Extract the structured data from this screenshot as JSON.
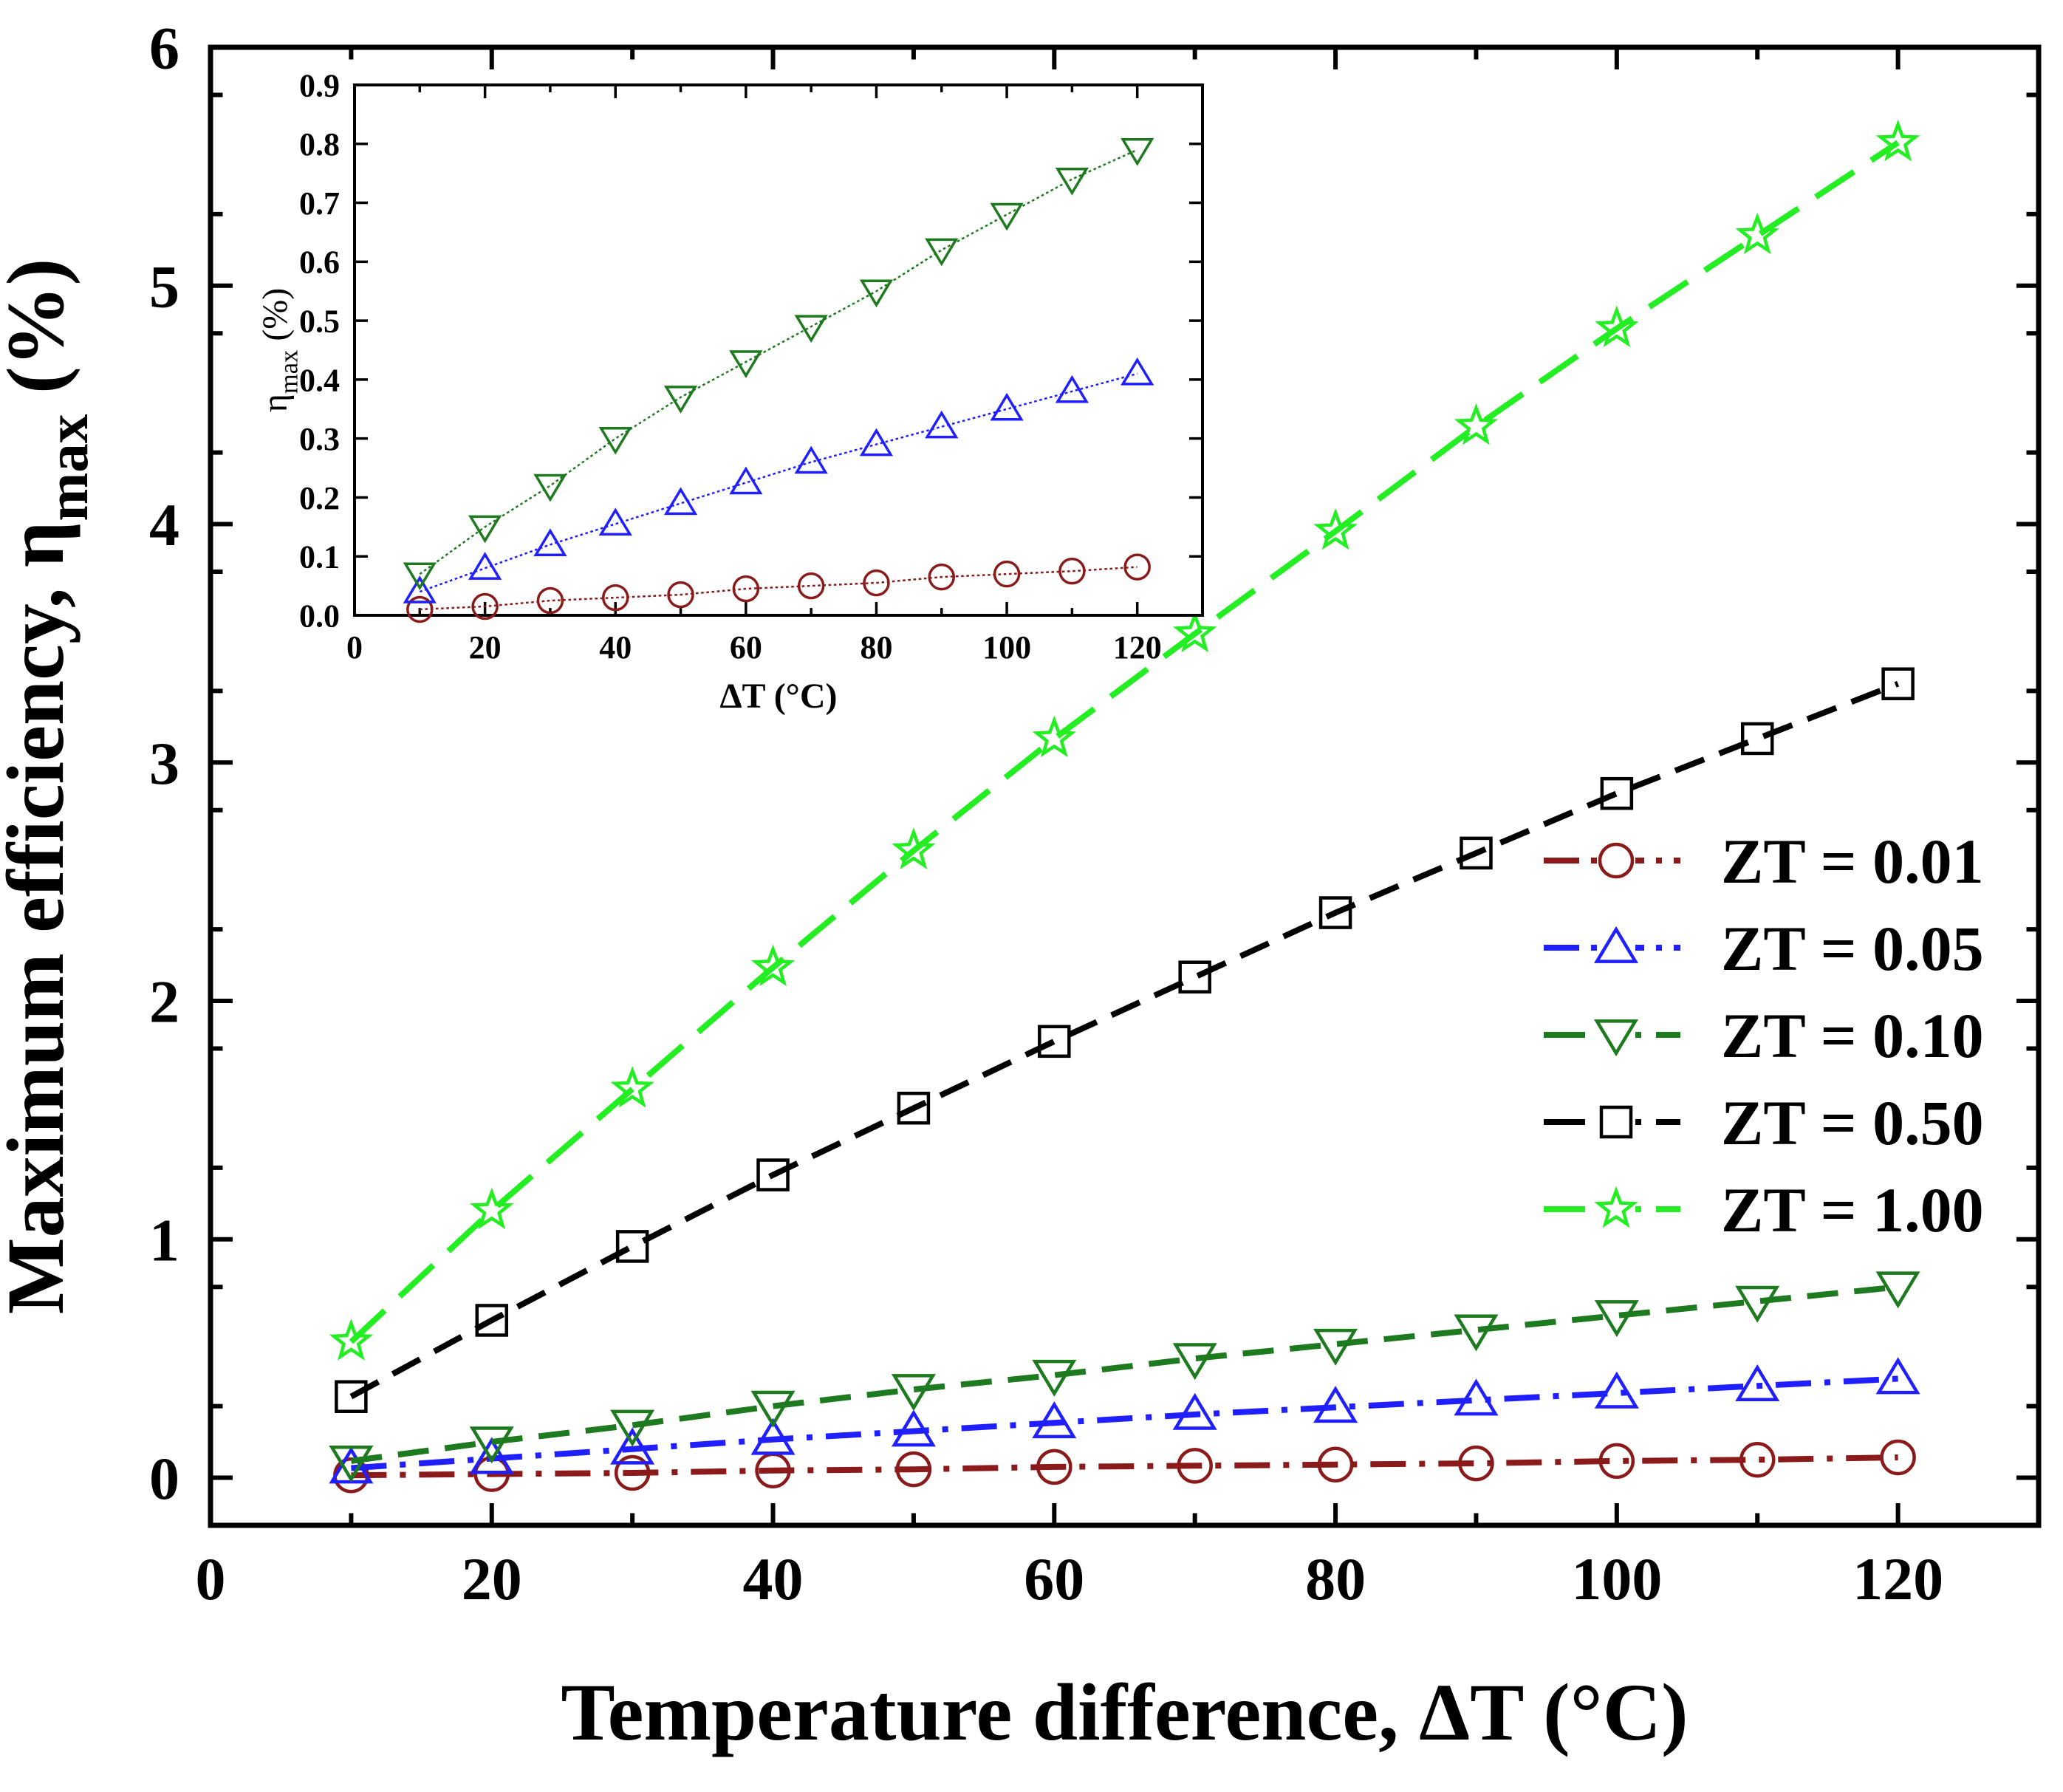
{
  "chart_data": [
    {
      "type": "line",
      "title": "",
      "xlabel": "Temperature difference, ΔT (°C)",
      "ylabel": "Maximum efficiency, η",
      "ylabel_sub": "max",
      "ylabel_unit": " (%)",
      "xlim": [
        0,
        130
      ],
      "ylim": [
        -0.2,
        6.0
      ],
      "xticks": [
        0,
        20,
        40,
        60,
        80,
        100,
        120
      ],
      "yticks": [
        0,
        1,
        2,
        3,
        4,
        5,
        6
      ],
      "grid": false,
      "legend_position": "right",
      "x": [
        10,
        20,
        30,
        40,
        50,
        60,
        70,
        80,
        90,
        100,
        110,
        120
      ],
      "series": [
        {
          "name": "ZT = 0.01",
          "color": "#8B1A1A",
          "marker": "circle",
          "dash": "dash-dot",
          "values": [
            0.01,
            0.015,
            0.02,
            0.03,
            0.035,
            0.045,
            0.05,
            0.055,
            0.06,
            0.07,
            0.075,
            0.085
          ]
        },
        {
          "name": "ZT = 0.05",
          "color": "#1F1FFF",
          "marker": "triangle-up",
          "dash": "dash-dot",
          "values": [
            0.04,
            0.08,
            0.12,
            0.16,
            0.195,
            0.23,
            0.265,
            0.295,
            0.325,
            0.355,
            0.385,
            0.415
          ]
        },
        {
          "name": "ZT = 0.10",
          "color": "#1E7A1E",
          "marker": "triangle-down",
          "dash": "dash",
          "values": [
            0.07,
            0.15,
            0.22,
            0.3,
            0.37,
            0.43,
            0.5,
            0.56,
            0.62,
            0.68,
            0.74,
            0.8
          ]
        },
        {
          "name": "ZT = 0.50",
          "color": "#000000",
          "marker": "square",
          "dash": "dash",
          "values": [
            0.34,
            0.66,
            0.97,
            1.27,
            1.55,
            1.83,
            2.1,
            2.37,
            2.62,
            2.87,
            3.1,
            3.33
          ]
        },
        {
          "name": "ZT = 1.00",
          "color": "#22EE22",
          "marker": "star",
          "dash": "long-dash",
          "values": [
            0.57,
            1.12,
            1.63,
            2.14,
            2.63,
            3.1,
            3.54,
            3.97,
            4.41,
            4.82,
            5.21,
            5.6
          ]
        }
      ]
    },
    {
      "type": "line",
      "title": "",
      "xlabel": "ΔT (°C)",
      "ylabel": "η",
      "ylabel_sub": "max",
      "ylabel_unit": " (%)",
      "xlim": [
        0,
        130
      ],
      "ylim": [
        0.0,
        0.9
      ],
      "xticks": [
        0,
        20,
        40,
        60,
        80,
        100,
        120
      ],
      "yticks": [
        "0.0",
        "0.1",
        "0.2",
        "0.3",
        "0.4",
        "0.5",
        "0.6",
        "0.7",
        "0.8",
        "0.9"
      ],
      "grid": false,
      "x": [
        10,
        20,
        30,
        40,
        50,
        60,
        70,
        80,
        90,
        100,
        110,
        120
      ],
      "series": [
        {
          "color": "#8B1A1A",
          "marker": "circle",
          "dash": "dotted",
          "values": [
            0.01,
            0.015,
            0.025,
            0.03,
            0.035,
            0.045,
            0.05,
            0.055,
            0.065,
            0.07,
            0.075,
            0.082
          ]
        },
        {
          "color": "#1F1FFF",
          "marker": "triangle-up",
          "dash": "dotted",
          "values": [
            0.04,
            0.08,
            0.12,
            0.155,
            0.19,
            0.225,
            0.26,
            0.29,
            0.32,
            0.35,
            0.38,
            0.41
          ]
        },
        {
          "color": "#1E7A1E",
          "marker": "triangle-down",
          "dash": "dotted",
          "values": [
            0.07,
            0.15,
            0.22,
            0.3,
            0.37,
            0.43,
            0.49,
            0.55,
            0.62,
            0.68,
            0.74,
            0.79
          ]
        }
      ]
    }
  ]
}
